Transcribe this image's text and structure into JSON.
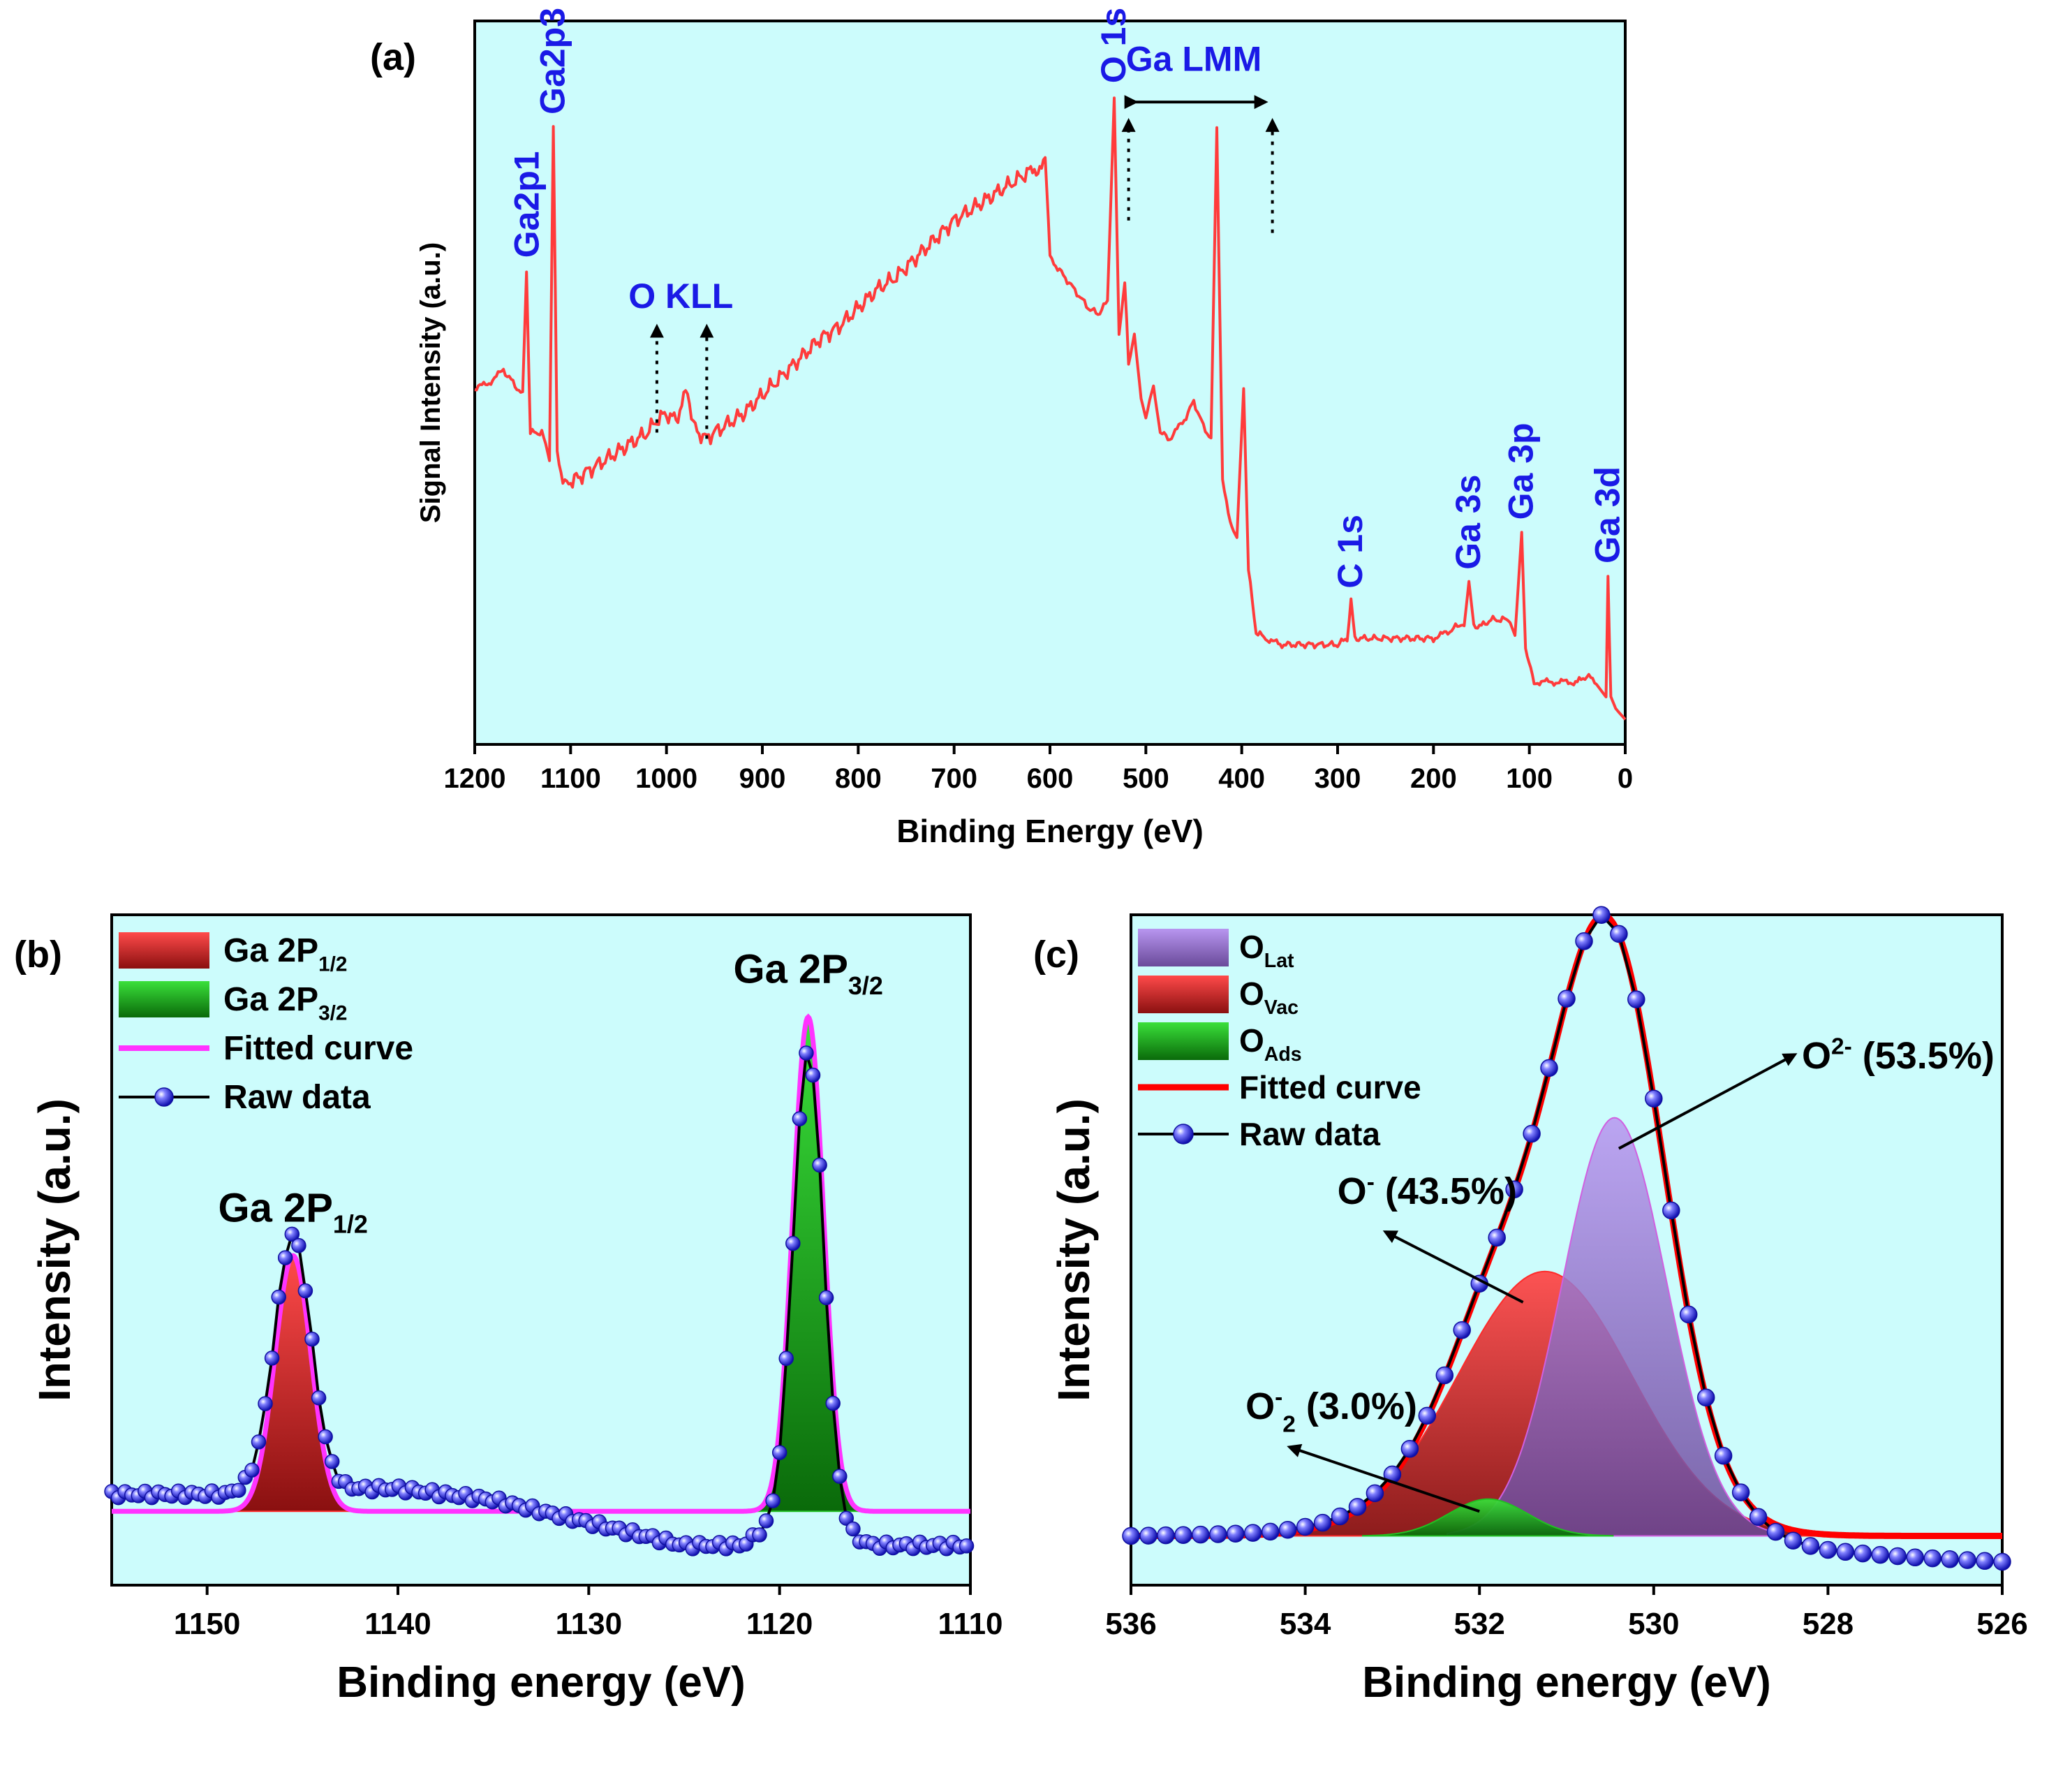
{
  "colors": {
    "background": "#ccfcfc",
    "survey_line": "#ff3b3b",
    "peak_label": "#1a1ae6",
    "fit_b": "#ff33ff",
    "fit_c": "#ff0000",
    "raw_marker": "#2020d0",
    "red_fill": "#ff2a2a",
    "green_fill": "#22c022",
    "purple_fill": "#a87ce0"
  },
  "chart_data": [
    {
      "id": "a",
      "type": "line",
      "panel_label": "(a)",
      "title": "",
      "xlabel": "Binding Energy (eV)",
      "ylabel": "Signal Intensity (a.u.)",
      "xlim": [
        1200,
        0
      ],
      "ylim": [
        0,
        100
      ],
      "xticks": [
        1200,
        1100,
        1000,
        900,
        800,
        700,
        600,
        500,
        400,
        300,
        200,
        100,
        0
      ],
      "xtick_labels": [
        "1200",
        "1100",
        "1000",
        "900",
        "800",
        "700",
        "600",
        "500",
        "400",
        "300",
        "200",
        "100",
        "0"
      ],
      "series": [
        {
          "name": "Survey spectrum",
          "points": [
            [
              1200,
              53
            ],
            [
              1185,
              54
            ],
            [
              1170,
              56
            ],
            [
              1160,
              54
            ],
            [
              1150,
              52
            ],
            [
              1146,
              72
            ],
            [
              1142,
              46
            ],
            [
              1130,
              46
            ],
            [
              1122,
              42
            ],
            [
              1118,
              95
            ],
            [
              1114,
              43
            ],
            [
              1108,
              38
            ],
            [
              1100,
              38
            ],
            [
              1080,
              40
            ],
            [
              1060,
              42
            ],
            [
              1040,
              44
            ],
            [
              1020,
              46
            ],
            [
              1010,
              48
            ],
            [
              1000,
              49
            ],
            [
              990,
              48
            ],
            [
              978,
              53
            ],
            [
              972,
              47
            ],
            [
              960,
              45
            ],
            [
              940,
              47
            ],
            [
              920,
              49
            ],
            [
              900,
              52
            ],
            [
              880,
              55
            ],
            [
              860,
              58
            ],
            [
              840,
              61
            ],
            [
              820,
              63
            ],
            [
              800,
              66
            ],
            [
              780,
              69
            ],
            [
              760,
              71
            ],
            [
              740,
              74
            ],
            [
              720,
              77
            ],
            [
              700,
              80
            ],
            [
              680,
              82
            ],
            [
              660,
              84
            ],
            [
              640,
              86
            ],
            [
              620,
              88
            ],
            [
              605,
              89
            ],
            [
              600,
              74
            ],
            [
              590,
              72
            ],
            [
              580,
              70
            ],
            [
              570,
              68
            ],
            [
              560,
              66
            ],
            [
              550,
              65
            ],
            [
              540,
              67
            ],
            [
              533,
              100
            ],
            [
              528,
              62
            ],
            [
              522,
              70
            ],
            [
              518,
              57
            ],
            [
              512,
              62
            ],
            [
              505,
              51
            ],
            [
              500,
              48
            ],
            [
              492,
              54
            ],
            [
              485,
              46
            ],
            [
              475,
              45
            ],
            [
              460,
              48
            ],
            [
              450,
              51
            ],
            [
              440,
              47
            ],
            [
              432,
              45
            ],
            [
              426,
              95
            ],
            [
              420,
              38
            ],
            [
              412,
              32
            ],
            [
              405,
              29
            ],
            [
              398,
              53
            ],
            [
              393,
              24
            ],
            [
              385,
              14
            ],
            [
              375,
              13
            ],
            [
              360,
              12
            ],
            [
              340,
              12
            ],
            [
              320,
              12
            ],
            [
              300,
              12
            ],
            [
              290,
              13
            ],
            [
              286,
              19
            ],
            [
              282,
              13
            ],
            [
              260,
              13
            ],
            [
              240,
              13
            ],
            [
              220,
              13
            ],
            [
              200,
              13
            ],
            [
              185,
              14
            ],
            [
              175,
              15
            ],
            [
              168,
              15
            ],
            [
              163,
              22
            ],
            [
              158,
              15
            ],
            [
              150,
              15
            ],
            [
              140,
              16
            ],
            [
              130,
              16
            ],
            [
              120,
              16
            ],
            [
              115,
              14
            ],
            [
              108,
              30
            ],
            [
              104,
              11
            ],
            [
              95,
              6
            ],
            [
              80,
              6
            ],
            [
              65,
              6
            ],
            [
              50,
              6
            ],
            [
              40,
              7
            ],
            [
              30,
              6
            ],
            [
              25,
              5
            ],
            [
              20,
              4
            ],
            [
              18,
              23
            ],
            [
              15,
              4
            ],
            [
              10,
              2
            ],
            [
              5,
              1
            ],
            [
              0,
              0
            ]
          ]
        }
      ],
      "peak_labels": [
        {
          "text": "Ga2p1",
          "x": 1145,
          "y": 72
        },
        {
          "text": "Ga2p3",
          "x": 1118,
          "y": 95
        },
        {
          "text": "O 1s",
          "x": 533,
          "y": 100
        },
        {
          "text": "C 1s",
          "x": 286,
          "y": 19
        },
        {
          "text": "Ga 3s",
          "x": 163,
          "y": 22
        },
        {
          "text": "Ga 3p",
          "x": 108,
          "y": 30
        },
        {
          "text": "Ga 3d",
          "x": 18,
          "y": 23
        }
      ],
      "annotations": [
        {
          "text": "O KLL",
          "x": 985,
          "y": 66
        },
        {
          "text": "Ga LMM",
          "x": 450,
          "y": 104
        }
      ],
      "auger_arrows": [
        {
          "x": 1010,
          "y_from": 46,
          "y_to": 63
        },
        {
          "x": 958,
          "y_from": 45,
          "y_to": 63
        },
        {
          "x": 518,
          "y_from": 80,
          "y_to": 96
        },
        {
          "x": 368,
          "y_from": 78,
          "y_to": 96
        }
      ],
      "range_arrow": {
        "x_from": 518,
        "x_to": 368,
        "y": 99
      }
    },
    {
      "id": "b",
      "type": "line",
      "panel_label": "(b)",
      "title": "",
      "xlabel": "Binding energy (eV)",
      "ylabel": "Intensity (a.u.)",
      "xlim": [
        1155,
        1110
      ],
      "ylim": [
        0,
        100
      ],
      "xticks": [
        1150,
        1140,
        1130,
        1120,
        1110
      ],
      "xtick_labels": [
        "1150",
        "1140",
        "1130",
        "1120",
        "1110"
      ],
      "baseline": 3,
      "components": [
        {
          "name": "Ga 2P1/2",
          "center": 1145.5,
          "sigma": 0.95,
          "height": 45,
          "color": "#ff2a2a"
        },
        {
          "name": "Ga 2P3/2",
          "center": 1118.5,
          "sigma": 0.8,
          "height": 87,
          "color": "#22c022"
        }
      ],
      "raw_background": [
        [
          1155,
          6
        ],
        [
          1152,
          6
        ],
        [
          1149,
          6
        ],
        [
          1147,
          8
        ],
        [
          1143,
          7
        ],
        [
          1140,
          7
        ],
        [
          1135,
          5
        ],
        [
          1130,
          1
        ],
        [
          1125,
          -3
        ],
        [
          1122,
          -3
        ],
        [
          1121,
          -1
        ],
        [
          1117,
          -1
        ],
        [
          1115,
          -3
        ],
        [
          1110,
          -3
        ]
      ],
      "peak_annotations": [
        {
          "text": "Ga 2P",
          "sub": "1/2",
          "x": 1145.5,
          "y": 54
        },
        {
          "text": "Ga 2P",
          "sub": "3/2",
          "x": 1118.5,
          "y": 96
        }
      ],
      "legend": [
        {
          "kind": "fill",
          "label": "Ga 2P",
          "sub": "1/2",
          "color": "#ff2a2a"
        },
        {
          "kind": "fill",
          "label": "Ga 2P",
          "sub": "3/2",
          "color": "#22c022"
        },
        {
          "kind": "line",
          "label": "Fitted curve",
          "sub": "",
          "color": "#ff33ff"
        },
        {
          "kind": "marker",
          "label": "Raw data",
          "sub": "",
          "color": "#2020d0"
        }
      ]
    },
    {
      "id": "c",
      "type": "line",
      "panel_label": "(c)",
      "title": "",
      "xlabel": "Binding energy (eV)",
      "ylabel": "Intensity (a.u.)",
      "xlim": [
        536,
        526
      ],
      "ylim": [
        0,
        100
      ],
      "xticks": [
        536,
        534,
        532,
        530,
        528,
        526
      ],
      "xtick_labels": [
        "536",
        "534",
        "532",
        "530",
        "528",
        "526"
      ],
      "baseline": 2,
      "components": [
        {
          "name": "OLat",
          "center": 530.45,
          "sigma": 0.6,
          "height": 68,
          "color": "#a87ce0"
        },
        {
          "name": "OVac",
          "center": 531.25,
          "sigma": 1.0,
          "height": 43,
          "color": "#ff2a2a"
        },
        {
          "name": "OAds",
          "center": 531.9,
          "sigma": 0.45,
          "height": 6,
          "color": "#22c022"
        }
      ],
      "raw_tail": [
        [
          536,
          2
        ],
        [
          534,
          2.5
        ],
        [
          529,
          2
        ],
        [
          528.5,
          0.5
        ],
        [
          528,
          -0.5
        ],
        [
          527,
          -1.5
        ],
        [
          526,
          -2.2
        ]
      ],
      "percent_labels": [
        {
          "text": "O",
          "sup": "2-",
          "sub": "",
          "pct": "(53.5%)",
          "x": 528.3,
          "y": 78
        },
        {
          "text": "O",
          "sup": "-",
          "sub": "",
          "pct": "(43.5%)",
          "x": 532.6,
          "y": 56
        },
        {
          "text": "O",
          "sup": "-",
          "sub": "2",
          "pct": "(3.0%)",
          "x": 533.7,
          "y": 21
        }
      ],
      "legend": [
        {
          "kind": "fill",
          "label": "O",
          "sub": "Lat",
          "color": "#a87ce0"
        },
        {
          "kind": "fill",
          "label": "O",
          "sub": "Vac",
          "color": "#ff2a2a"
        },
        {
          "kind": "fill",
          "label": "O",
          "sub": "Ads",
          "color": "#22c022"
        },
        {
          "kind": "line",
          "label": "Fitted curve",
          "sub": "",
          "color": "#ff0000"
        },
        {
          "kind": "marker",
          "label": "Raw data",
          "sub": "",
          "color": "#2020d0"
        }
      ]
    }
  ]
}
